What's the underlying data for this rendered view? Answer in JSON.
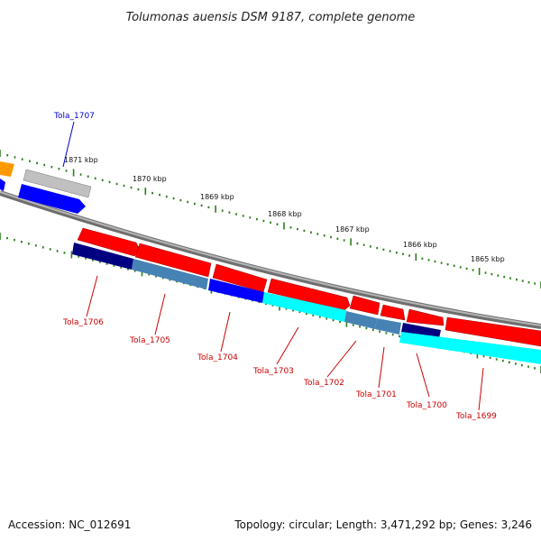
{
  "title": "Tolumonas auensis DSM 9187, complete genome",
  "footer": {
    "accession": "Accession: NC_012691",
    "summary": "Topology: circular; Length: 3,471,292 bp; Genes: 3,246"
  },
  "colors": {
    "backbone": "#888888",
    "tick": "#2e7d1e",
    "label_forward": "#0000cc",
    "label_reverse": "#cc0000",
    "red": "#ff0000",
    "navy": "#000080",
    "steel": "#4682b4",
    "blue": "#0000ff",
    "cyan": "#00ffff",
    "orange": "#ff9900",
    "grey": "#c0c0c0"
  },
  "scale_labels": [
    "1871 kbp",
    "1870 kbp",
    "1869 kbp",
    "1868 kbp",
    "1867 kbp",
    "1866 kbp",
    "1865 kbp"
  ],
  "gene_labels": [
    {
      "text": "Tola_1707",
      "color": "#0000cc"
    },
    {
      "text": "Tola_1706",
      "color": "#cc0000"
    },
    {
      "text": "Tola_1705",
      "color": "#cc0000"
    },
    {
      "text": "Tola_1704",
      "color": "#cc0000"
    },
    {
      "text": "Tola_1703",
      "color": "#cc0000"
    },
    {
      "text": "Tola_1702",
      "color": "#cc0000"
    },
    {
      "text": "Tola_1701",
      "color": "#cc0000"
    },
    {
      "text": "Tola_1700",
      "color": "#cc0000"
    },
    {
      "text": "Tola_1699",
      "color": "#cc0000"
    }
  ]
}
